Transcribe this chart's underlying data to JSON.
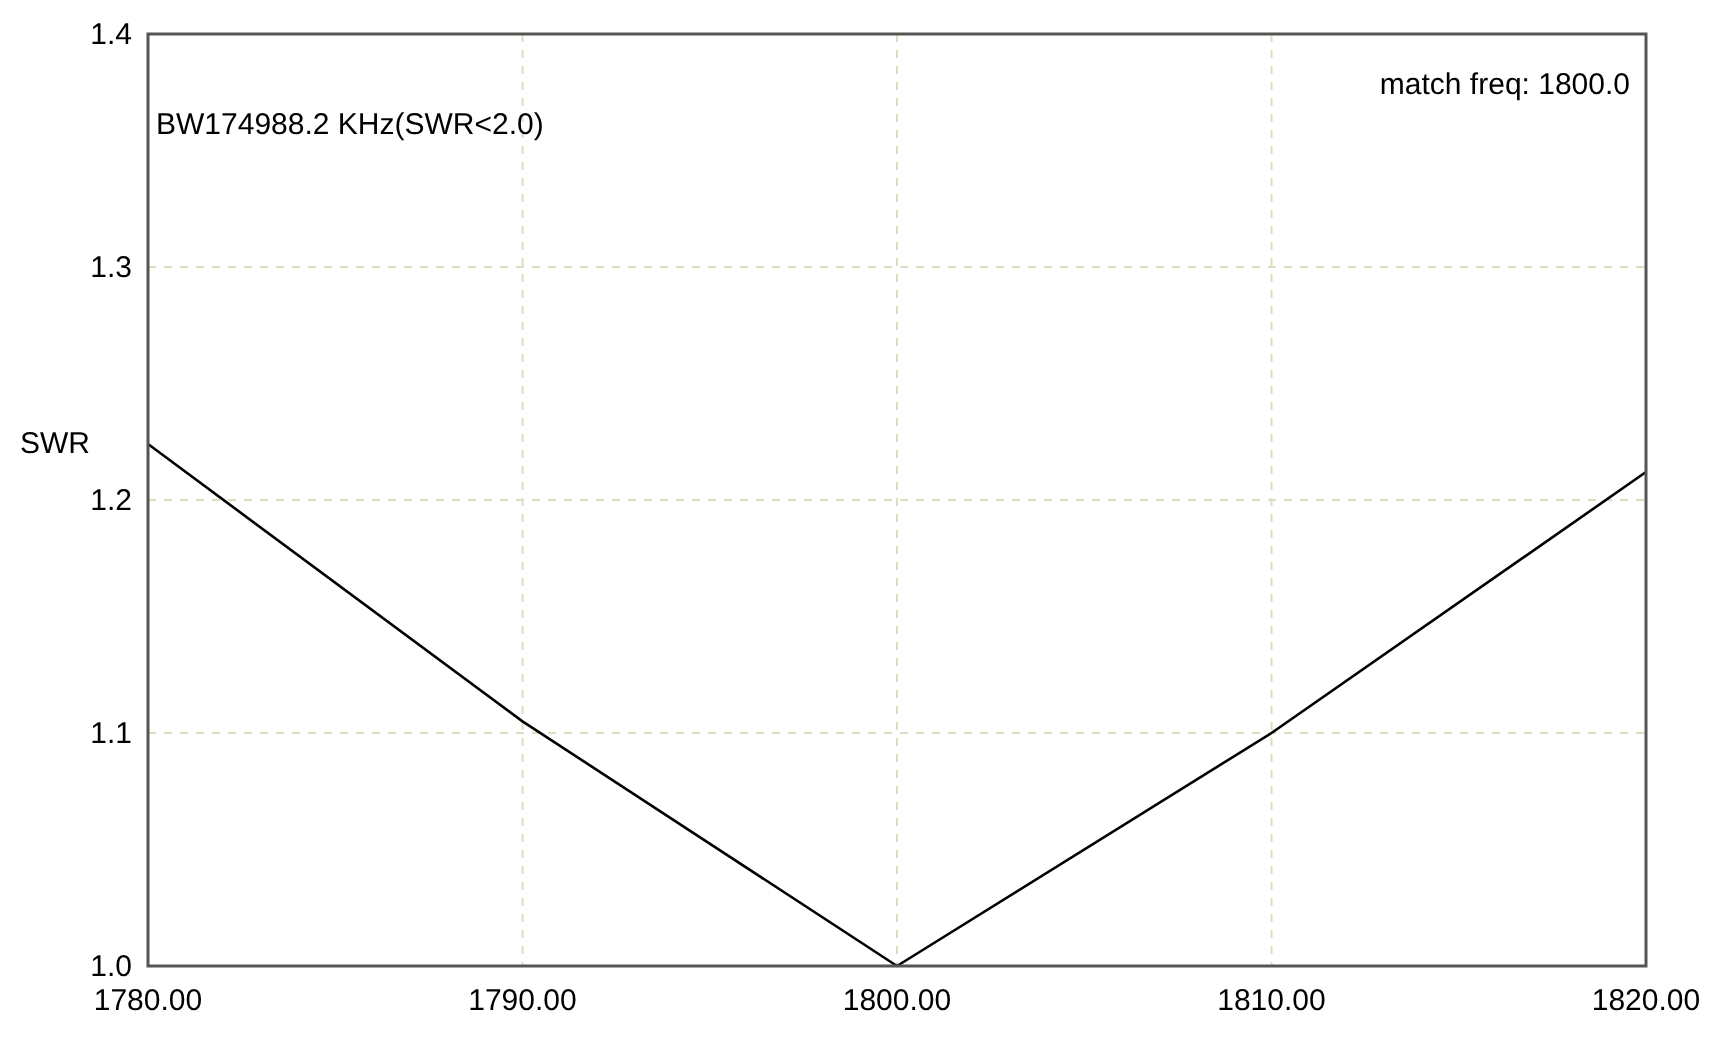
{
  "chart_data": {
    "type": "line",
    "ylabel": "SWR",
    "annotations": [
      "BW174988.2 KHz(SWR<2.0)",
      "match freq: 1800.0"
    ],
    "x": [
      1780,
      1790,
      1800,
      1810,
      1820
    ],
    "series": [
      {
        "color": "#000000",
        "values": [
          1.224,
          1.105,
          1.0,
          1.1,
          1.212
        ]
      }
    ],
    "xlim": [
      1780,
      1820
    ],
    "xticks": [
      {
        "value": 1780,
        "label": "1780.00"
      },
      {
        "value": 1790,
        "label": "1790.00"
      },
      {
        "value": 1800,
        "label": "1800.00"
      },
      {
        "value": 1810,
        "label": "1810.00"
      },
      {
        "value": 1820,
        "label": "1820.00"
      }
    ],
    "ylim": [
      1.0,
      1.4
    ],
    "yticks": [
      {
        "value": 1.0,
        "label": "1.0"
      },
      {
        "value": 1.1,
        "label": "1.1"
      },
      {
        "value": 1.2,
        "label": "1.2"
      },
      {
        "value": 1.3,
        "label": "1.3"
      },
      {
        "value": 1.4,
        "label": "1.4"
      }
    ],
    "grid": true,
    "line_style": "solid"
  }
}
